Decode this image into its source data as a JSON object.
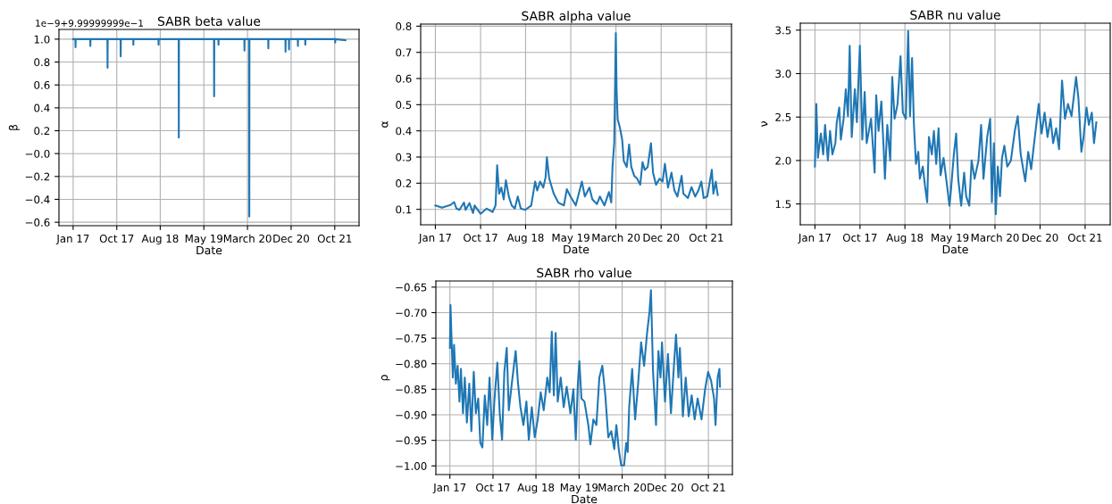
{
  "chart_data": [
    {
      "type": "line",
      "title": "SABR beta value",
      "xlabel": "Date",
      "ylabel": "β",
      "color": "#1f77b4",
      "grid": true,
      "annotations": [
        "1e−9+9.99999999e−1"
      ],
      "x": [
        "2017-01-03",
        "2017-01-18",
        "2017-01-19",
        "2017-01-20",
        "2017-04-26",
        "2017-04-27",
        "2017-04-28",
        "2017-08-18",
        "2017-08-19",
        "2017-08-20",
        "2017-11-13",
        "2017-11-14",
        "2017-11-15",
        "2018-02-05",
        "2018-02-06",
        "2018-02-07",
        "2018-07-22",
        "2018-07-23",
        "2018-07-24",
        "2018-12-03",
        "2018-12-04",
        "2018-12-05",
        "2019-07-25",
        "2019-07-26",
        "2019-07-27",
        "2019-08-23",
        "2019-08-24",
        "2019-08-25",
        "2020-02-11",
        "2020-02-12",
        "2020-02-13",
        "2020-03-14",
        "2020-03-15",
        "2020-03-16",
        "2020-07-18",
        "2020-07-19",
        "2020-07-20",
        "2020-11-09",
        "2020-11-10",
        "2020-11-11",
        "2020-12-02",
        "2020-12-03",
        "2020-12-04",
        "2021-01-30",
        "2021-01-31",
        "2021-02-01",
        "2021-03-20",
        "2021-03-21",
        "2021-03-22",
        "2021-10-04",
        "2021-10-05",
        "2021-10-06",
        "2021-12-12"
      ],
      "values": [
        1.0,
        1.0,
        0.93,
        1.0,
        1.0,
        0.94,
        1.0,
        1.0,
        0.75,
        1.0,
        1.0,
        0.85,
        1.0,
        1.0,
        0.95,
        1.0,
        1.0,
        0.95,
        1.0,
        1.0,
        0.14,
        1.0,
        1.0,
        0.5,
        1.0,
        1.0,
        0.95,
        1.0,
        1.0,
        0.9,
        1.0,
        1.0,
        -0.55,
        1.0,
        1.0,
        0.92,
        1.0,
        1.0,
        0.89,
        1.0,
        1.0,
        0.91,
        1.0,
        1.0,
        0.94,
        1.0,
        1.0,
        0.95,
        1.0,
        1.0,
        0.97,
        1.0,
        0.99
      ],
      "xlim": [
        "2016-10-01",
        "2022-03-12"
      ],
      "ylim": [
        -0.63,
        1.085
      ],
      "xticks": [
        {
          "value": "2017-01-03",
          "label": "Jan 17"
        },
        {
          "value": "2017-10-19",
          "label": "Oct 17"
        },
        {
          "value": "2018-08-03",
          "label": "Aug 18"
        },
        {
          "value": "2019-05-19",
          "label": "May 19"
        },
        {
          "value": "2020-03-03",
          "label": "March 20"
        },
        {
          "value": "2020-12-17",
          "label": "Dec 20"
        },
        {
          "value": "2021-10-02",
          "label": "Oct 21"
        }
      ],
      "yticks": [
        {
          "value": -0.6,
          "label": "−0.6"
        },
        {
          "value": -0.4,
          "label": "−0.4"
        },
        {
          "value": -0.2,
          "label": "−0.2"
        },
        {
          "value": 0,
          "label": "−0.0"
        },
        0.2,
        0.4,
        0.6,
        0.8,
        {
          "value": 1,
          "label": "1.0"
        }
      ]
    },
    {
      "type": "line",
      "title": "SABR alpha value",
      "xlabel": "Date",
      "ylabel": "α",
      "color": "#1f77b4",
      "grid": true,
      "x": [
        "2017-01-03",
        "2017-02-14",
        "2017-04-10",
        "2017-05-03",
        "2017-05-18",
        "2017-06-06",
        "2017-07-05",
        "2017-07-15",
        "2017-08-09",
        "2017-09-01",
        "2017-09-11",
        "2017-10-19",
        "2017-11-27",
        "2018-01-04",
        "2018-01-23",
        "2018-02-02",
        "2018-02-15",
        "2018-03-01",
        "2018-03-16",
        "2018-03-30",
        "2018-04-18",
        "2018-05-06",
        "2018-05-26",
        "2018-06-14",
        "2018-07-03",
        "2018-08-01",
        "2018-09-08",
        "2018-10-03",
        "2018-10-16",
        "2018-11-04",
        "2018-11-24",
        "2018-12-09",
        "2018-12-17",
        "2019-01-01",
        "2019-01-30",
        "2019-02-28",
        "2019-04-05",
        "2019-04-24",
        "2019-05-17",
        "2019-06-20",
        "2019-07-29",
        "2019-08-17",
        "2019-09-15",
        "2019-10-04",
        "2019-11-02",
        "2019-11-21",
        "2019-12-20",
        "2020-01-18",
        "2020-02-02",
        "2020-02-10",
        "2020-02-21",
        "2020-03-02",
        "2020-03-07",
        "2020-03-14",
        "2020-03-29",
        "2020-04-12",
        "2020-04-22",
        "2020-05-11",
        "2020-05-26",
        "2020-06-09",
        "2020-06-28",
        "2020-07-17",
        "2020-08-05",
        "2020-08-20",
        "2020-09-03",
        "2020-09-22",
        "2020-10-13",
        "2020-10-26",
        "2020-11-14",
        "2020-12-07",
        "2020-12-26",
        "2021-01-10",
        "2021-01-30",
        "2021-02-21",
        "2021-03-12",
        "2021-03-31",
        "2021-04-27",
        "2021-05-08",
        "2021-06-06",
        "2021-06-29",
        "2021-07-23",
        "2021-08-12",
        "2021-08-31",
        "2021-09-15",
        "2021-10-08",
        "2021-11-06",
        "2021-11-16",
        "2021-12-01",
        "2021-12-14"
      ],
      "values": [
        0.115,
        0.107,
        0.117,
        0.128,
        0.103,
        0.098,
        0.126,
        0.098,
        0.124,
        0.086,
        0.115,
        0.083,
        0.103,
        0.09,
        0.115,
        0.268,
        0.16,
        0.183,
        0.138,
        0.211,
        0.149,
        0.115,
        0.103,
        0.149,
        0.103,
        0.098,
        0.115,
        0.206,
        0.172,
        0.206,
        0.183,
        0.223,
        0.299,
        0.218,
        0.16,
        0.126,
        0.115,
        0.177,
        0.149,
        0.115,
        0.206,
        0.149,
        0.183,
        0.138,
        0.12,
        0.149,
        0.115,
        0.166,
        0.126,
        0.263,
        0.353,
        0.774,
        0.558,
        0.444,
        0.41,
        0.365,
        0.285,
        0.262,
        0.348,
        0.262,
        0.228,
        0.217,
        0.194,
        0.28,
        0.251,
        0.262,
        0.353,
        0.24,
        0.194,
        0.217,
        0.206,
        0.274,
        0.183,
        0.24,
        0.172,
        0.149,
        0.228,
        0.16,
        0.143,
        0.185,
        0.149,
        0.172,
        0.206,
        0.143,
        0.149,
        0.251,
        0.16,
        0.206,
        0.155
      ],
      "xlim": [
        "2016-10-01",
        "2022-03-12"
      ],
      "ylim": [
        0.041,
        0.808
      ],
      "xticks": [
        {
          "value": "2017-01-03",
          "label": "Jan 17"
        },
        {
          "value": "2017-10-19",
          "label": "Oct 17"
        },
        {
          "value": "2018-08-03",
          "label": "Aug 18"
        },
        {
          "value": "2019-05-19",
          "label": "May 19"
        },
        {
          "value": "2020-03-03",
          "label": "March 20"
        },
        {
          "value": "2020-12-17",
          "label": "Dec 20"
        },
        {
          "value": "2021-10-02",
          "label": "Oct 21"
        }
      ],
      "yticks": [
        0.1,
        0.2,
        0.3,
        0.4,
        0.5,
        0.6,
        0.7,
        0.8
      ]
    },
    {
      "type": "line",
      "title": "SABR nu value",
      "xlabel": "Date",
      "ylabel": "ν",
      "color": "#1f77b4",
      "grid": true,
      "x": [
        "2017-01-03",
        "2017-01-12",
        "2017-01-22",
        "2017-02-10",
        "2017-02-25",
        "2017-03-09",
        "2017-03-27",
        "2017-04-10",
        "2017-04-25",
        "2017-05-14",
        "2017-05-23",
        "2017-06-08",
        "2017-06-18",
        "2017-07-06",
        "2017-07-20",
        "2017-08-03",
        "2017-08-14",
        "2017-08-27",
        "2017-09-16",
        "2017-09-29",
        "2017-10-18",
        "2017-11-03",
        "2017-11-18",
        "2017-12-01",
        "2017-12-29",
        "2018-01-21",
        "2018-01-31",
        "2018-02-15",
        "2018-03-05",
        "2018-03-20",
        "2018-03-28",
        "2018-04-12",
        "2018-05-01",
        "2018-05-14",
        "2018-05-29",
        "2018-06-17",
        "2018-07-06",
        "2018-07-21",
        "2018-08-09",
        "2018-08-24",
        "2018-09-05",
        "2018-09-18",
        "2018-09-30",
        "2018-10-13",
        "2018-10-28",
        "2018-11-07",
        "2018-11-26",
        "2018-12-09",
        "2018-12-24",
        "2019-01-04",
        "2019-01-23",
        "2019-02-05",
        "2019-02-20",
        "2019-03-07",
        "2019-03-20",
        "2019-04-08",
        "2019-04-27",
        "2019-05-16",
        "2019-05-25",
        "2019-06-13",
        "2019-06-28",
        "2019-07-11",
        "2019-07-30",
        "2019-08-18",
        "2019-08-31",
        "2019-09-20",
        "2019-10-05",
        "2019-10-24",
        "2019-11-18",
        "2019-12-05",
        "2019-12-20",
        "2020-01-13",
        "2020-02-01",
        "2020-02-12",
        "2020-02-25",
        "2020-03-08",
        "2020-03-21",
        "2020-04-04",
        "2020-04-17",
        "2020-05-02",
        "2020-05-21",
        "2020-06-13",
        "2020-07-08",
        "2020-07-27",
        "2020-08-15",
        "2020-09-13",
        "2020-10-02",
        "2020-10-21",
        "2020-11-09",
        "2020-12-08",
        "2020-12-27",
        "2021-01-15",
        "2021-02-03",
        "2021-02-22",
        "2021-03-11",
        "2021-03-30",
        "2021-04-18",
        "2021-05-07",
        "2021-05-26",
        "2021-06-14",
        "2021-07-07",
        "2021-08-05",
        "2021-08-20",
        "2021-09-08",
        "2021-09-22",
        "2021-10-11",
        "2021-10-26",
        "2021-11-14",
        "2021-11-28",
        "2021-12-13"
      ],
      "values": [
        1.93,
        2.65,
        2.03,
        2.31,
        2.07,
        2.41,
        2.0,
        2.34,
        2.07,
        2.2,
        2.44,
        2.61,
        2.24,
        2.48,
        2.82,
        2.51,
        3.32,
        2.27,
        2.82,
        2.44,
        3.32,
        2.24,
        2.79,
        2.2,
        2.48,
        1.86,
        2.75,
        2.34,
        2.68,
        2.13,
        1.79,
        2.41,
        2.0,
        2.96,
        2.48,
        2.65,
        3.2,
        2.55,
        2.48,
        3.49,
        2.51,
        3.18,
        2.41,
        1.96,
        2.1,
        1.79,
        1.93,
        1.72,
        1.52,
        2.27,
        2.07,
        2.34,
        1.96,
        2.37,
        1.83,
        2.03,
        1.76,
        1.48,
        1.65,
        2.07,
        2.31,
        1.79,
        1.48,
        1.86,
        1.59,
        1.48,
        2.0,
        1.79,
        2.0,
        2.41,
        1.79,
        2.27,
        2.48,
        1.52,
        2.2,
        1.38,
        1.93,
        1.59,
        2.03,
        2.17,
        1.93,
        2.0,
        2.34,
        2.51,
        2.07,
        1.76,
        2.1,
        1.9,
        2.2,
        2.65,
        2.31,
        2.55,
        2.27,
        2.48,
        2.2,
        2.37,
        2.13,
        2.92,
        2.48,
        2.65,
        2.51,
        2.96,
        2.72,
        2.1,
        2.27,
        2.61,
        2.41,
        2.55,
        2.2,
        2.44
      ],
      "xlim": [
        "2016-10-01",
        "2022-03-12"
      ],
      "ylim": [
        1.26,
        3.58
      ],
      "xticks": [
        {
          "value": "2017-01-03",
          "label": "Jan 17"
        },
        {
          "value": "2017-10-19",
          "label": "Oct 17"
        },
        {
          "value": "2018-08-03",
          "label": "Aug 18"
        },
        {
          "value": "2019-05-19",
          "label": "May 19"
        },
        {
          "value": "2020-03-03",
          "label": "March 20"
        },
        {
          "value": "2020-12-17",
          "label": "Dec 20"
        },
        {
          "value": "2021-10-02",
          "label": "Oct 21"
        }
      ],
      "yticks": [
        1.5,
        {
          "value": 2,
          "label": "2.0"
        },
        2.5,
        {
          "value": 3,
          "label": "3.0"
        },
        3.5
      ]
    },
    {
      "type": "line",
      "title": "SABR rho value",
      "xlabel": "Date",
      "ylabel": "ρ",
      "color": "#1f77b4",
      "grid": true,
      "x": [
        "2017-01-03",
        "2017-01-07",
        "2017-01-15",
        "2017-01-23",
        "2017-01-31",
        "2017-02-12",
        "2017-02-24",
        "2017-03-08",
        "2017-03-18",
        "2017-04-01",
        "2017-04-13",
        "2017-04-27",
        "2017-05-13",
        "2017-05-27",
        "2017-06-12",
        "2017-06-26",
        "2017-07-12",
        "2017-07-26",
        "2017-08-09",
        "2017-08-25",
        "2017-09-10",
        "2017-09-26",
        "2017-10-14",
        "2017-10-28",
        "2017-11-17",
        "2017-12-03",
        "2017-12-19",
        "2018-01-03",
        "2018-01-19",
        "2018-02-02",
        "2018-02-22",
        "2018-03-20",
        "2018-04-05",
        "2018-04-21",
        "2018-05-11",
        "2018-05-31",
        "2018-06-16",
        "2018-07-06",
        "2018-07-26",
        "2018-08-15",
        "2018-09-04",
        "2018-09-24",
        "2018-10-18",
        "2018-11-03",
        "2018-11-17",
        "2018-12-01",
        "2018-12-13",
        "2018-12-27",
        "2019-01-16",
        "2019-02-05",
        "2019-02-25",
        "2019-03-22",
        "2019-04-11",
        "2019-04-27",
        "2019-05-11",
        "2019-05-21",
        "2019-06-04",
        "2019-06-24",
        "2019-07-20",
        "2019-08-03",
        "2019-08-23",
        "2019-09-12",
        "2019-10-02",
        "2019-10-22",
        "2019-11-11",
        "2019-12-01",
        "2019-12-21",
        "2020-01-10",
        "2020-01-24",
        "2020-02-09",
        "2020-02-25",
        "2020-03-16",
        "2020-03-30",
        "2020-04-09",
        "2020-04-19",
        "2020-05-09",
        "2020-05-29",
        "2020-06-18",
        "2020-07-08",
        "2020-07-28",
        "2020-08-17",
        "2020-09-02",
        "2020-09-12",
        "2020-09-26",
        "2020-10-16",
        "2020-11-01",
        "2020-11-15",
        "2020-11-25",
        "2020-12-15",
        "2021-01-04",
        "2021-01-24",
        "2021-02-13",
        "2021-02-27",
        "2021-03-15",
        "2021-03-25",
        "2021-04-14",
        "2021-05-03",
        "2021-05-23",
        "2021-06-12",
        "2021-07-02",
        "2021-07-22",
        "2021-08-17",
        "2021-09-10",
        "2021-09-30",
        "2021-10-20",
        "2021-11-09",
        "2021-11-19",
        "2021-12-03",
        "2021-12-15",
        "2021-12-19"
      ],
      "values": [
        -0.769,
        -0.685,
        -0.758,
        -0.827,
        -0.763,
        -0.839,
        -0.804,
        -0.874,
        -0.81,
        -0.897,
        -0.827,
        -0.915,
        -0.839,
        -0.932,
        -0.816,
        -0.897,
        -0.868,
        -0.955,
        -0.964,
        -0.862,
        -0.92,
        -0.827,
        -0.949,
        -0.874,
        -0.798,
        -0.897,
        -0.949,
        -0.816,
        -0.769,
        -0.891,
        -0.839,
        -0.775,
        -0.839,
        -0.885,
        -0.92,
        -0.874,
        -0.949,
        -0.885,
        -0.944,
        -0.909,
        -0.856,
        -0.891,
        -0.827,
        -0.856,
        -0.737,
        -0.862,
        -0.74,
        -0.874,
        -0.827,
        -0.885,
        -0.845,
        -0.897,
        -0.85,
        -0.949,
        -0.839,
        -0.795,
        -0.868,
        -0.874,
        -0.92,
        -0.958,
        -0.909,
        -0.92,
        -0.827,
        -0.804,
        -0.862,
        -0.944,
        -0.932,
        -0.967,
        -0.92,
        -0.967,
        -0.999,
        -0.999,
        -0.955,
        -0.973,
        -0.885,
        -0.81,
        -0.909,
        -0.839,
        -0.758,
        -0.804,
        -0.74,
        -0.699,
        -0.656,
        -0.816,
        -0.92,
        -0.775,
        -0.827,
        -0.758,
        -0.874,
        -0.781,
        -0.897,
        -0.804,
        -0.743,
        -0.827,
        -0.769,
        -0.903,
        -0.827,
        -0.903,
        -0.862,
        -0.909,
        -0.868,
        -0.909,
        -0.85,
        -0.816,
        -0.833,
        -0.868,
        -0.92,
        -0.827,
        -0.81,
        -0.845
      ],
      "xlim": [
        "2016-10-01",
        "2022-03-12"
      ],
      "ylim": [
        -1.017,
        -0.638
      ],
      "xticks": [
        {
          "value": "2017-01-03",
          "label": "Jan 17"
        },
        {
          "value": "2017-10-19",
          "label": "Oct 17"
        },
        {
          "value": "2018-08-03",
          "label": "Aug 18"
        },
        {
          "value": "2019-05-19",
          "label": "May 19"
        },
        {
          "value": "2020-03-03",
          "label": "March 20"
        },
        {
          "value": "2020-12-17",
          "label": "Dec 20"
        },
        {
          "value": "2021-10-02",
          "label": "Oct 21"
        }
      ],
      "yticks": [
        {
          "value": -1.0,
          "label": "−1.00"
        },
        {
          "value": -0.95,
          "label": "−0.95"
        },
        {
          "value": -0.9,
          "label": "−0.90"
        },
        {
          "value": -0.85,
          "label": "−0.85"
        },
        {
          "value": -0.8,
          "label": "−0.80"
        },
        {
          "value": -0.75,
          "label": "−0.75"
        },
        {
          "value": -0.7,
          "label": "−0.70"
        },
        {
          "value": -0.65,
          "label": "−0.65"
        }
      ]
    }
  ]
}
